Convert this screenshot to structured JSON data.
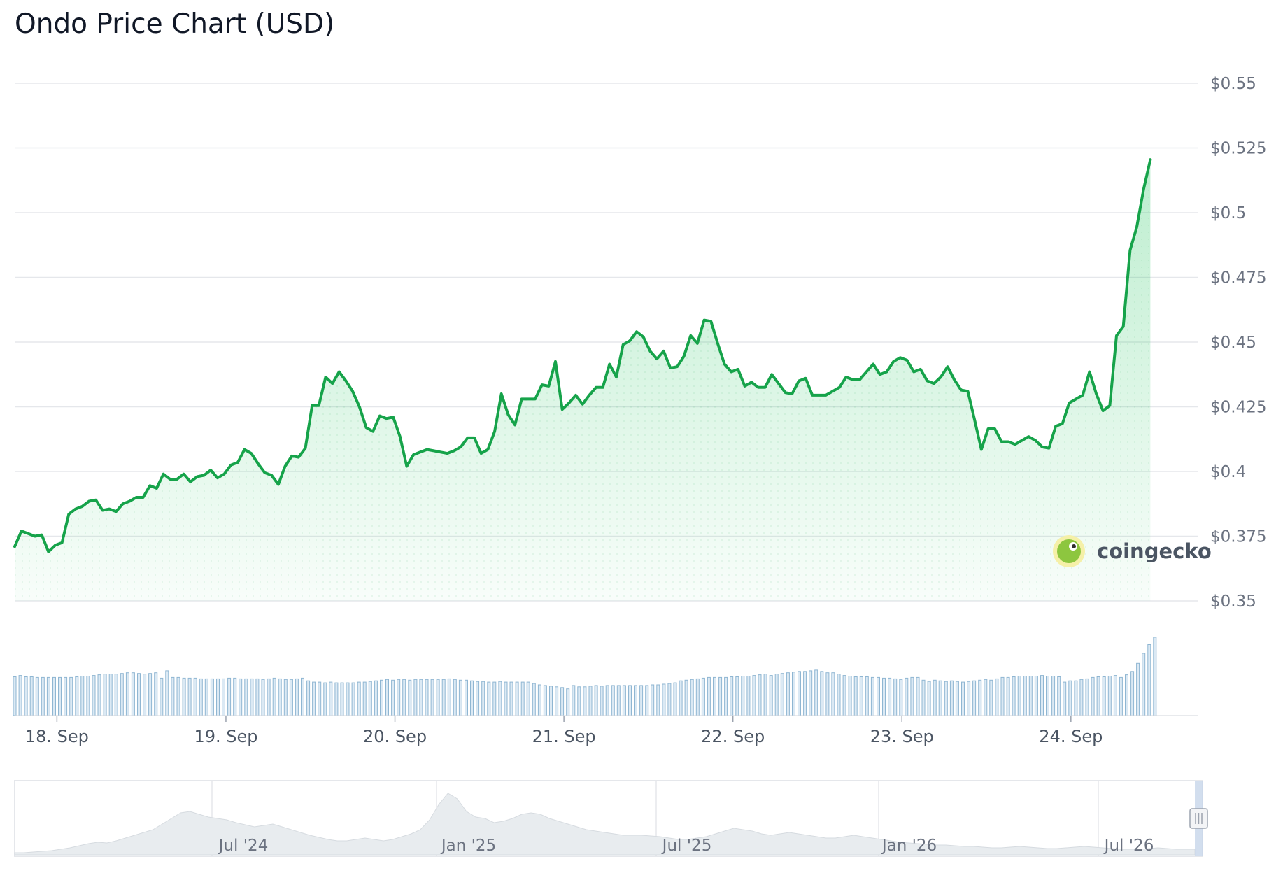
{
  "title": "Ondo Price Chart (USD)",
  "watermark": "coingecko",
  "colors": {
    "line": "#16a34a",
    "area": "#22c55e",
    "volume": "#8fb6d2",
    "grid": "#e5e7eb",
    "navigator": "#e8ecef"
  },
  "chart_data": {
    "type": "line",
    "title": "Ondo Price Chart (USD)",
    "ylim": [
      0.35,
      0.55
    ],
    "yticks": [
      "$0.35",
      "$0.375",
      "$0.4",
      "$0.425",
      "$0.45",
      "$0.475",
      "$0.5",
      "$0.525",
      "$0.55"
    ],
    "ytick_values": [
      0.35,
      0.375,
      0.4,
      0.425,
      0.45,
      0.475,
      0.5,
      0.525,
      0.55
    ],
    "xticks": [
      "18. Sep",
      "19. Sep",
      "20. Sep",
      "21. Sep",
      "22. Sep",
      "23. Sep",
      "24. Sep"
    ],
    "xtick_days": [
      0,
      1,
      2,
      3,
      4,
      5,
      6
    ],
    "x_day_range": [
      -0.25,
      6.75
    ],
    "grid": true,
    "series": [
      {
        "points": [
          [
            -0.25,
            0.371
          ],
          [
            -0.21,
            0.377
          ],
          [
            -0.17,
            0.376
          ],
          [
            -0.13,
            0.375
          ],
          [
            -0.09,
            0.3755
          ],
          [
            -0.05,
            0.369
          ],
          [
            -0.01,
            0.3715
          ],
          [
            0.03,
            0.3725
          ],
          [
            0.07,
            0.3835
          ],
          [
            0.11,
            0.3855
          ],
          [
            0.15,
            0.3865
          ],
          [
            0.19,
            0.3885
          ],
          [
            0.23,
            0.389
          ],
          [
            0.27,
            0.385
          ],
          [
            0.31,
            0.3855
          ],
          [
            0.35,
            0.3845
          ],
          [
            0.39,
            0.3875
          ],
          [
            0.43,
            0.3885
          ],
          [
            0.47,
            0.39
          ],
          [
            0.51,
            0.39
          ],
          [
            0.55,
            0.3945
          ],
          [
            0.59,
            0.3935
          ],
          [
            0.63,
            0.399
          ],
          [
            0.67,
            0.397
          ],
          [
            0.71,
            0.397
          ],
          [
            0.75,
            0.399
          ],
          [
            0.79,
            0.396
          ],
          [
            0.83,
            0.398
          ],
          [
            0.87,
            0.3985
          ],
          [
            0.91,
            0.4005
          ],
          [
            0.95,
            0.3975
          ],
          [
            0.99,
            0.399
          ],
          [
            1.03,
            0.4025
          ],
          [
            1.07,
            0.4035
          ],
          [
            1.11,
            0.4085
          ],
          [
            1.15,
            0.407
          ],
          [
            1.19,
            0.403
          ],
          [
            1.23,
            0.3995
          ],
          [
            1.27,
            0.3985
          ],
          [
            1.31,
            0.395
          ],
          [
            1.35,
            0.402
          ],
          [
            1.39,
            0.406
          ],
          [
            1.43,
            0.4055
          ],
          [
            1.47,
            0.409
          ],
          [
            1.51,
            0.4255
          ],
          [
            1.55,
            0.4255
          ],
          [
            1.59,
            0.4365
          ],
          [
            1.63,
            0.434
          ],
          [
            1.67,
            0.4385
          ],
          [
            1.71,
            0.435
          ],
          [
            1.75,
            0.431
          ],
          [
            1.79,
            0.425
          ],
          [
            1.83,
            0.417
          ],
          [
            1.87,
            0.4155
          ],
          [
            1.91,
            0.4215
          ],
          [
            1.95,
            0.4205
          ],
          [
            1.99,
            0.421
          ],
          [
            2.03,
            0.4135
          ],
          [
            2.07,
            0.402
          ],
          [
            2.11,
            0.4065
          ],
          [
            2.15,
            0.4075
          ],
          [
            2.19,
            0.4085
          ],
          [
            2.23,
            0.408
          ],
          [
            2.27,
            0.4075
          ],
          [
            2.31,
            0.407
          ],
          [
            2.35,
            0.408
          ],
          [
            2.39,
            0.4095
          ],
          [
            2.43,
            0.413
          ],
          [
            2.47,
            0.413
          ],
          [
            2.51,
            0.407
          ],
          [
            2.55,
            0.4085
          ],
          [
            2.59,
            0.4155
          ],
          [
            2.63,
            0.43
          ],
          [
            2.67,
            0.422
          ],
          [
            2.71,
            0.418
          ],
          [
            2.75,
            0.428
          ],
          [
            2.79,
            0.428
          ],
          [
            2.83,
            0.428
          ],
          [
            2.87,
            0.4335
          ],
          [
            2.91,
            0.433
          ],
          [
            2.95,
            0.4425
          ],
          [
            2.99,
            0.424
          ],
          [
            3.03,
            0.4265
          ],
          [
            3.07,
            0.4295
          ],
          [
            3.11,
            0.426
          ],
          [
            3.15,
            0.4295
          ],
          [
            3.19,
            0.4325
          ],
          [
            3.23,
            0.4325
          ],
          [
            3.27,
            0.4415
          ],
          [
            3.31,
            0.4365
          ],
          [
            3.35,
            0.449
          ],
          [
            3.39,
            0.4505
          ],
          [
            3.43,
            0.454
          ],
          [
            3.47,
            0.452
          ],
          [
            3.51,
            0.4465
          ],
          [
            3.55,
            0.4435
          ],
          [
            3.59,
            0.4465
          ],
          [
            3.63,
            0.44
          ],
          [
            3.67,
            0.4405
          ],
          [
            3.71,
            0.4445
          ],
          [
            3.75,
            0.4525
          ],
          [
            3.79,
            0.4495
          ],
          [
            3.83,
            0.4585
          ],
          [
            3.87,
            0.458
          ],
          [
            3.91,
            0.4495
          ],
          [
            3.95,
            0.4415
          ],
          [
            3.99,
            0.4385
          ],
          [
            4.03,
            0.4395
          ],
          [
            4.07,
            0.433
          ],
          [
            4.11,
            0.4345
          ],
          [
            4.15,
            0.4325
          ],
          [
            4.19,
            0.4325
          ],
          [
            4.23,
            0.4375
          ],
          [
            4.27,
            0.434
          ],
          [
            4.31,
            0.4305
          ],
          [
            4.35,
            0.43
          ],
          [
            4.39,
            0.435
          ],
          [
            4.43,
            0.436
          ],
          [
            4.47,
            0.4295
          ],
          [
            4.51,
            0.4295
          ],
          [
            4.55,
            0.4295
          ],
          [
            4.59,
            0.431
          ],
          [
            4.63,
            0.4325
          ],
          [
            4.67,
            0.4365
          ],
          [
            4.71,
            0.4355
          ],
          [
            4.75,
            0.4355
          ],
          [
            4.79,
            0.4385
          ],
          [
            4.83,
            0.4415
          ],
          [
            4.87,
            0.4375
          ],
          [
            4.91,
            0.4385
          ],
          [
            4.95,
            0.4425
          ],
          [
            4.99,
            0.444
          ],
          [
            5.03,
            0.443
          ],
          [
            5.07,
            0.4385
          ],
          [
            5.11,
            0.4395
          ],
          [
            5.15,
            0.435
          ],
          [
            5.19,
            0.434
          ],
          [
            5.23,
            0.4365
          ],
          [
            5.27,
            0.4405
          ],
          [
            5.31,
            0.4355
          ],
          [
            5.35,
            0.4315
          ],
          [
            5.39,
            0.431
          ],
          [
            5.43,
            0.42
          ],
          [
            5.47,
            0.4085
          ],
          [
            5.51,
            0.4165
          ],
          [
            5.55,
            0.4165
          ],
          [
            5.59,
            0.4115
          ],
          [
            5.63,
            0.4115
          ],
          [
            5.67,
            0.4105
          ],
          [
            5.71,
            0.412
          ],
          [
            5.75,
            0.4135
          ],
          [
            5.79,
            0.412
          ],
          [
            5.83,
            0.4095
          ],
          [
            5.87,
            0.409
          ],
          [
            5.91,
            0.4175
          ],
          [
            5.95,
            0.4185
          ],
          [
            5.99,
            0.4265
          ],
          [
            6.03,
            0.428
          ],
          [
            6.07,
            0.4295
          ],
          [
            6.11,
            0.4385
          ],
          [
            6.15,
            0.43
          ],
          [
            6.19,
            0.4235
          ],
          [
            6.23,
            0.4255
          ],
          [
            6.27,
            0.4525
          ],
          [
            6.31,
            0.456
          ],
          [
            6.35,
            0.4855
          ],
          [
            6.39,
            0.4945
          ],
          [
            6.43,
            0.509
          ],
          [
            6.47,
            0.5205
          ]
        ]
      }
    ],
    "volume": {
      "start_day": -0.25,
      "step_days": 0.0334,
      "values": [
        58,
        60,
        58,
        58,
        57,
        57,
        57,
        57,
        57,
        57,
        57,
        58,
        59,
        59,
        60,
        61,
        62,
        62,
        62,
        63,
        64,
        64,
        63,
        62,
        63,
        64,
        56,
        67,
        57,
        57,
        56,
        56,
        56,
        55,
        55,
        55,
        55,
        55,
        56,
        56,
        55,
        55,
        55,
        55,
        54,
        55,
        56,
        55,
        54,
        54,
        55,
        56,
        52,
        50,
        50,
        49,
        50,
        49,
        49,
        49,
        49,
        50,
        50,
        51,
        52,
        53,
        54,
        53,
        54,
        54,
        53,
        54,
        54,
        54,
        54,
        54,
        54,
        55,
        54,
        53,
        53,
        52,
        51,
        51,
        50,
        50,
        51,
        50,
        50,
        50,
        50,
        50,
        48,
        46,
        45,
        44,
        43,
        42,
        40,
        45,
        43,
        43,
        44,
        45,
        44,
        45,
        45,
        45,
        45,
        45,
        45,
        45,
        45,
        46,
        46,
        47,
        48,
        49,
        52,
        53,
        54,
        55,
        56,
        57,
        57,
        57,
        57,
        58,
        58,
        59,
        59,
        60,
        61,
        62,
        60,
        62,
        63,
        64,
        65,
        66,
        66,
        67,
        68,
        66,
        64,
        64,
        62,
        60,
        59,
        58,
        58,
        58,
        57,
        57,
        56,
        56,
        55,
        54,
        56,
        57,
        57,
        53,
        51,
        53,
        52,
        51,
        52,
        51,
        50,
        51,
        52,
        53,
        54,
        53,
        55,
        57,
        57,
        58,
        59,
        59,
        59,
        59,
        60,
        59,
        59,
        58,
        50,
        52,
        52,
        54,
        55,
        57,
        58,
        58,
        59,
        60,
        57,
        61,
        66,
        78,
        93,
        106,
        117
      ]
    },
    "navigator": {
      "labels": [
        "Jul '24",
        "Jan '25",
        "Jul '25",
        "Jan '26",
        "Jul '26"
      ]
    }
  }
}
